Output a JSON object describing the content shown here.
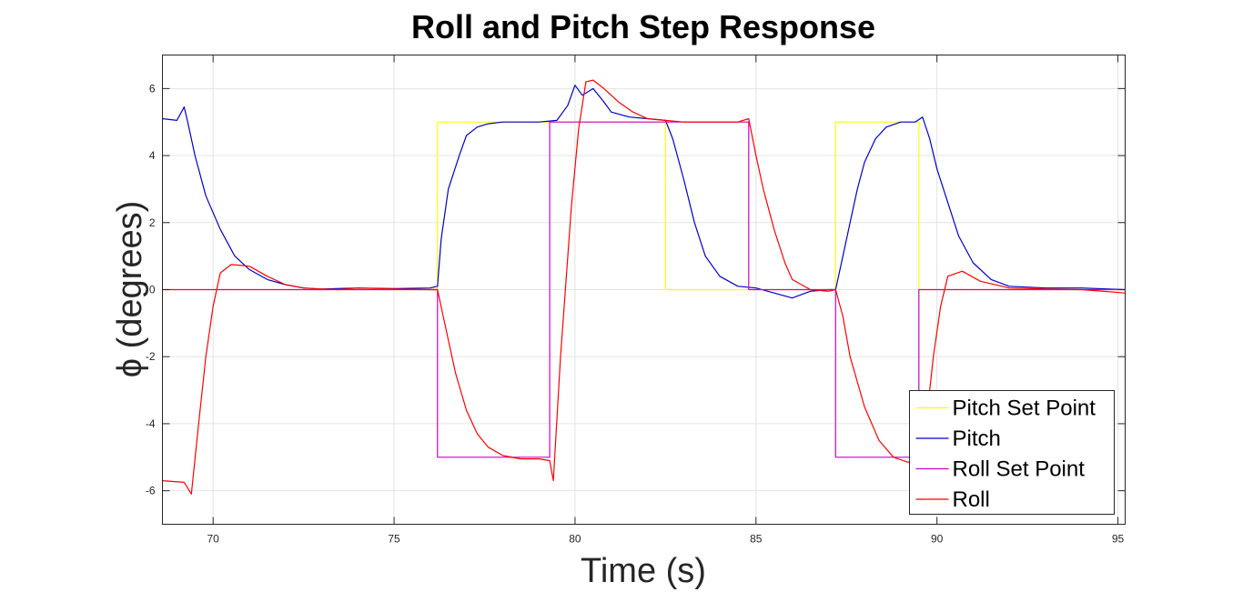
{
  "chart_data": {
    "type": "line",
    "title": "Roll and Pitch Step Response",
    "xlabel": "Time (s)",
    "ylabel": "ϕ (degrees)",
    "xlim": [
      68.6,
      95.2
    ],
    "ylim": [
      -7,
      7
    ],
    "xticks": [
      70,
      75,
      80,
      85,
      90,
      95
    ],
    "yticks": [
      -6,
      -4,
      -2,
      0,
      2,
      4,
      6
    ],
    "grid": true,
    "legend_position": "bottom-right",
    "series": [
      {
        "name": "Pitch Set Point",
        "color": "#ffff00",
        "x": [
          68.6,
          76.2,
          76.2,
          82.5,
          82.5,
          87.2,
          87.2,
          89.5,
          89.5,
          95.2
        ],
        "y": [
          0,
          0,
          5,
          5,
          0,
          0,
          5,
          5,
          0,
          0
        ]
      },
      {
        "name": "Pitch",
        "color": "#0000cc",
        "x": [
          68.6,
          69.0,
          69.2,
          69.3,
          69.5,
          69.8,
          70.2,
          70.6,
          71.0,
          71.5,
          72.0,
          72.5,
          73.0,
          74.0,
          75.0,
          76.0,
          76.2,
          76.3,
          76.5,
          76.8,
          77.0,
          77.3,
          77.6,
          78.0,
          78.5,
          79.0,
          79.5,
          79.8,
          80.0,
          80.2,
          80.5,
          80.8,
          81.0,
          81.5,
          82.0,
          82.5,
          82.7,
          83.0,
          83.3,
          83.6,
          84.0,
          84.5,
          85.0,
          85.5,
          86.0,
          86.5,
          87.0,
          87.2,
          87.4,
          87.6,
          87.8,
          88.0,
          88.3,
          88.6,
          89.0,
          89.4,
          89.6,
          89.8,
          90.0,
          90.3,
          90.6,
          91.0,
          91.5,
          92.0,
          93.0,
          94.0,
          95.2
        ],
        "y": [
          5.1,
          5.05,
          5.45,
          5.0,
          4.0,
          2.8,
          1.8,
          1.0,
          0.6,
          0.3,
          0.15,
          0.05,
          0.02,
          0.05,
          0.03,
          0.05,
          0.1,
          1.5,
          3.0,
          4.0,
          4.6,
          4.85,
          4.95,
          5.0,
          5.0,
          5.0,
          5.05,
          5.5,
          6.1,
          5.8,
          6.0,
          5.6,
          5.3,
          5.15,
          5.1,
          5.05,
          4.5,
          3.3,
          2.0,
          1.0,
          0.4,
          0.1,
          0.05,
          -0.1,
          -0.25,
          -0.05,
          0.0,
          0.0,
          1.0,
          2.0,
          3.0,
          3.8,
          4.5,
          4.85,
          5.0,
          5.0,
          5.15,
          4.5,
          3.6,
          2.6,
          1.6,
          0.8,
          0.3,
          0.1,
          0.05,
          0.05,
          0.0
        ]
      },
      {
        "name": "Roll Set Point",
        "color": "#cc00cc",
        "x": [
          68.6,
          76.2,
          76.2,
          79.3,
          79.3,
          84.8,
          84.8,
          87.2,
          87.2,
          89.5,
          89.5,
          95.2
        ],
        "y": [
          0,
          0,
          -5,
          -5,
          5,
          5,
          0,
          0,
          -5,
          -5,
          0,
          0
        ]
      },
      {
        "name": "Roll",
        "color": "#ff0000",
        "x": [
          68.6,
          69.2,
          69.4,
          69.6,
          69.8,
          70.0,
          70.2,
          70.5,
          71.0,
          71.5,
          72.0,
          72.5,
          73.0,
          73.5,
          74.0,
          75.0,
          76.0,
          76.2,
          76.4,
          76.7,
          77.0,
          77.3,
          77.6,
          78.0,
          78.5,
          79.0,
          79.3,
          79.4,
          79.6,
          79.9,
          80.1,
          80.3,
          80.5,
          80.8,
          81.2,
          81.6,
          82.0,
          82.5,
          83.0,
          83.5,
          84.0,
          84.5,
          84.8,
          85.0,
          85.2,
          85.5,
          85.8,
          86.0,
          86.5,
          87.0,
          87.2,
          87.4,
          87.6,
          88.0,
          88.4,
          88.8,
          89.2,
          89.5,
          89.7,
          89.9,
          90.1,
          90.3,
          90.7,
          91.2,
          92.0,
          93.0,
          94.0,
          95.2
        ],
        "y": [
          -5.7,
          -5.75,
          -6.1,
          -4.0,
          -2.0,
          -0.5,
          0.5,
          0.75,
          0.7,
          0.4,
          0.15,
          0.05,
          0.02,
          0.0,
          0.05,
          0.02,
          0.0,
          0.0,
          -1.0,
          -2.5,
          -3.6,
          -4.3,
          -4.7,
          -4.95,
          -5.05,
          -5.05,
          -5.1,
          -5.7,
          -2.0,
          2.5,
          4.8,
          6.2,
          6.25,
          6.0,
          5.6,
          5.3,
          5.1,
          5.05,
          5.0,
          5.0,
          5.0,
          5.0,
          5.1,
          4.0,
          3.0,
          1.8,
          0.8,
          0.3,
          0.0,
          -0.05,
          0.0,
          -0.8,
          -2.0,
          -3.5,
          -4.5,
          -5.0,
          -5.15,
          -5.05,
          -4.0,
          -2.0,
          -0.5,
          0.4,
          0.55,
          0.25,
          0.05,
          0.02,
          0.0,
          -0.1
        ]
      }
    ]
  }
}
